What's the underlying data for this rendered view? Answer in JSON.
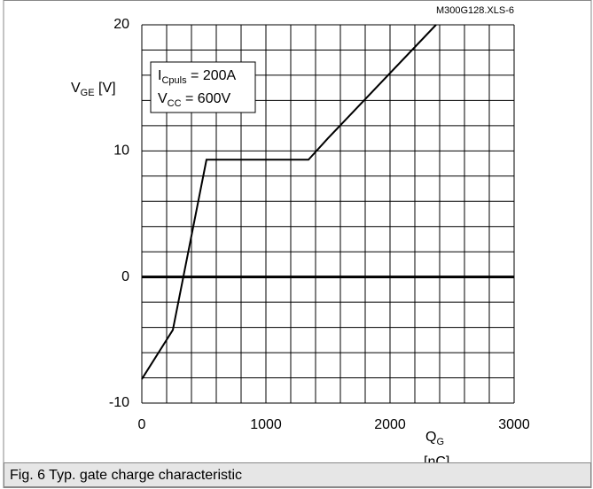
{
  "chart_data": {
    "type": "line",
    "file_label": "M300G128.XLS-6",
    "y_label": {
      "main": "V",
      "sub": "GE",
      "rest": " [V]"
    },
    "x_label": {
      "main": "Q",
      "sub": "G",
      "unit": "[nC]"
    },
    "annotations": [
      {
        "main": "I",
        "sub": "Cpuls",
        "rest": " = 200A"
      },
      {
        "main": "V",
        "sub": "CC",
        "rest": " = 600V"
      }
    ],
    "caption": "Fig. 6 Typ. gate charge characteristic",
    "x": [
      0,
      250,
      521,
      1343,
      1500,
      2371
    ],
    "series": [
      {
        "color": "#000000",
        "values": [
          -8.1,
          -4.2,
          9.3,
          9.3,
          11,
          20
        ]
      }
    ],
    "xlim": [
      0,
      3000
    ],
    "ylim": [
      -10,
      20
    ],
    "xticks": [
      0,
      1000,
      2000,
      3000
    ],
    "yticks": [
      -10,
      0,
      10,
      20
    ],
    "xgrid": [
      0,
      200,
      400,
      600,
      800,
      1000,
      1200,
      1400,
      1600,
      1800,
      2000,
      2200,
      2400,
      2600,
      2800,
      3000
    ],
    "ygrid": [
      -10,
      -8,
      -6,
      -4,
      -2,
      0,
      2,
      4,
      6,
      8,
      10,
      12,
      14,
      16,
      18,
      20
    ],
    "grid": true
  }
}
